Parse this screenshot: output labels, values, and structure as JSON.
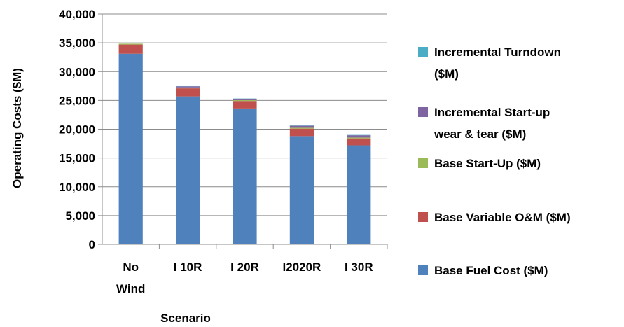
{
  "chart_data": {
    "type": "bar",
    "stacked": true,
    "title": "",
    "xlabel": "Scenario",
    "ylabel": "Operating Costs ($M)",
    "ylim": [
      0,
      40000
    ],
    "yticks": [
      "0",
      "5,000",
      "10,000",
      "15,000",
      "20,000",
      "25,000",
      "30,000",
      "35,000",
      "40,000"
    ],
    "grid": true,
    "legend_position": "right",
    "categories": [
      "No Wind",
      "I 10R",
      "I 20R",
      "I2020R",
      "I 30R"
    ],
    "category_lines": [
      [
        "No",
        "Wind"
      ],
      [
        "I 10R"
      ],
      [
        "I 20R"
      ],
      [
        "I2020R"
      ],
      [
        "I 30R"
      ]
    ],
    "series": [
      {
        "name": "Base Fuel Cost ($M)",
        "name_lines": [
          "Base Fuel Cost ($M)"
        ],
        "color": "#4f81bd",
        "values": [
          33100,
          25700,
          23600,
          18800,
          17200
        ]
      },
      {
        "name": "Base Variable O&M ($M)",
        "name_lines": [
          "Base Variable O&M ($M)"
        ],
        "color": "#c0504d",
        "values": [
          1600,
          1400,
          1300,
          1300,
          1200
        ]
      },
      {
        "name": "Base Start-Up ($M)",
        "name_lines": [
          "Base Start-Up ($M)"
        ],
        "color": "#9bbb59",
        "values": [
          150,
          150,
          150,
          150,
          150
        ]
      },
      {
        "name": "Incremental Start-up wear & tear ($M)",
        "name_lines": [
          "Incremental Start-up",
          "wear & tear ($M)"
        ],
        "color": "#8064a2",
        "values": [
          0,
          200,
          250,
          350,
          400
        ]
      },
      {
        "name": "Incremental Turndown ($M)",
        "name_lines": [
          "Incremental Turndown",
          "($M)"
        ],
        "color": "#4bacc6",
        "values": [
          0,
          30,
          40,
          50,
          60
        ]
      }
    ]
  }
}
